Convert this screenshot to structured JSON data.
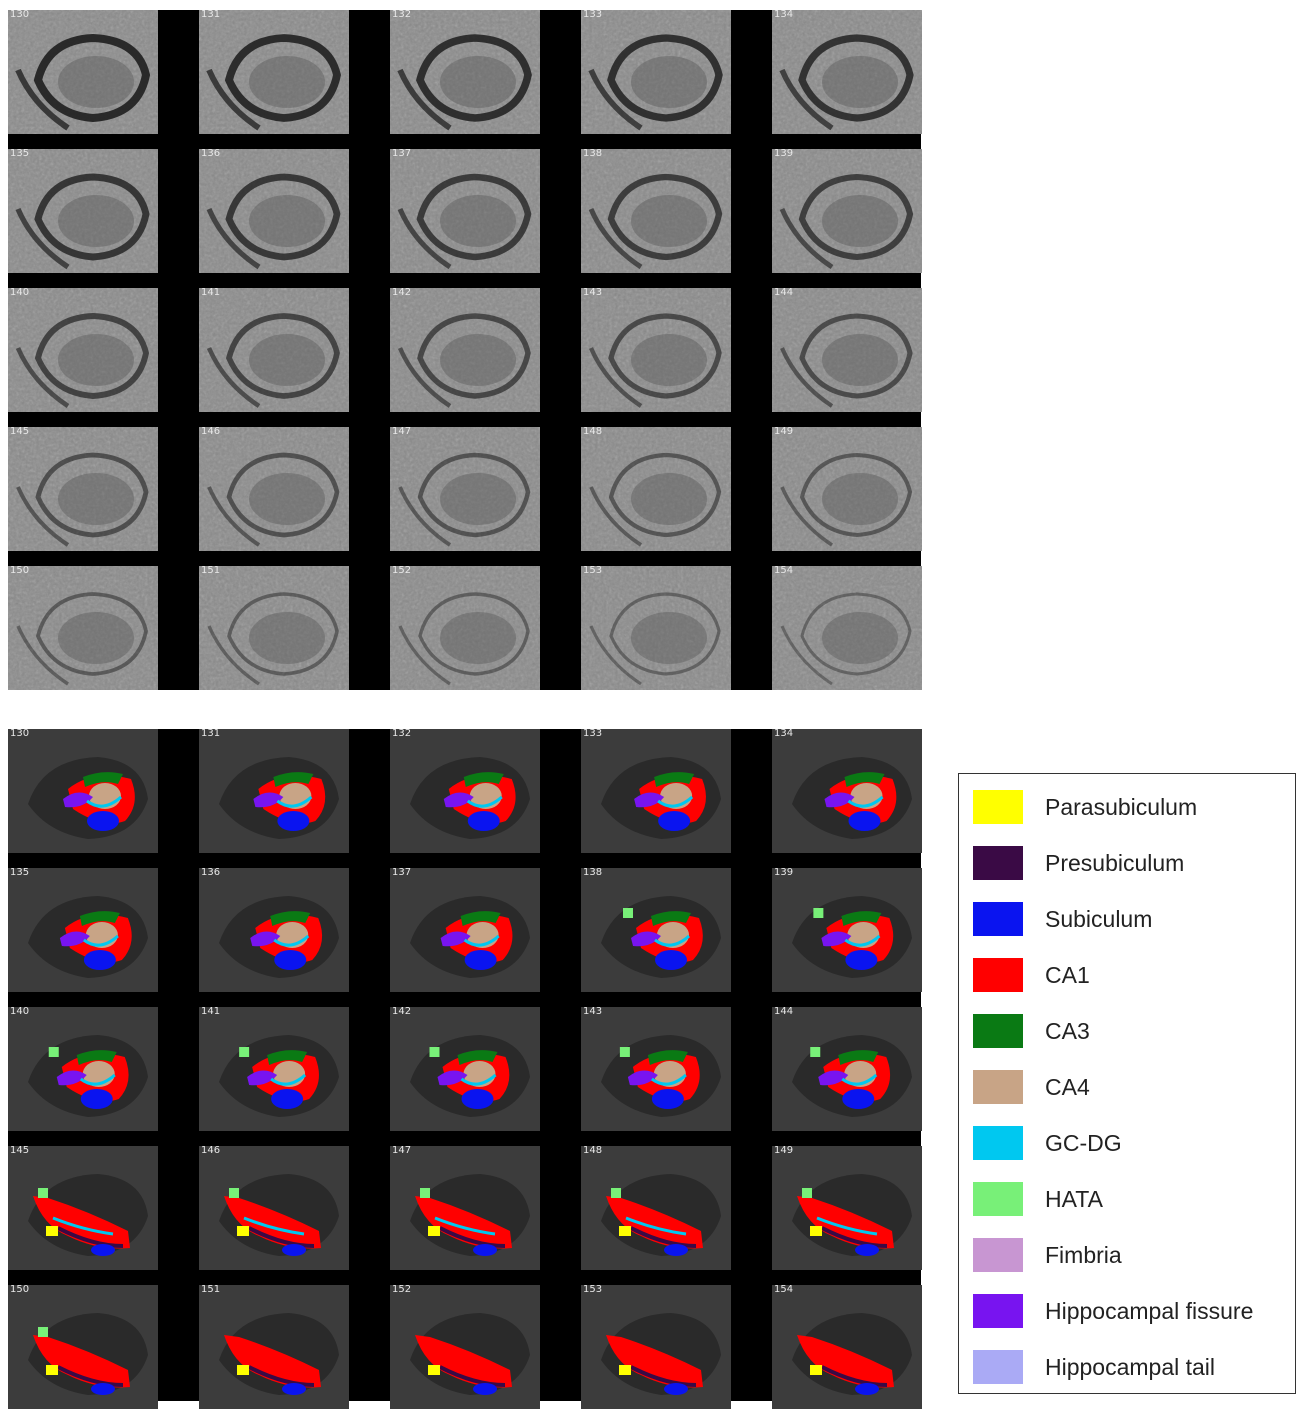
{
  "top_grid": {
    "slice_numbers": [
      "130",
      "131",
      "132",
      "133",
      "134",
      "135",
      "136",
      "137",
      "138",
      "139",
      "140",
      "141",
      "142",
      "143",
      "144",
      "145",
      "146",
      "147",
      "148",
      "149",
      "150",
      "151",
      "152",
      "153",
      "154"
    ]
  },
  "bottom_grid": {
    "slice_numbers": [
      "130",
      "131",
      "132",
      "133",
      "134",
      "135",
      "136",
      "137",
      "138",
      "139",
      "140",
      "141",
      "142",
      "143",
      "144",
      "145",
      "146",
      "147",
      "148",
      "149",
      "150",
      "151",
      "152",
      "153",
      "154"
    ]
  },
  "legend": {
    "items": [
      {
        "label": "Parasubiculum",
        "color": "#ffff00"
      },
      {
        "label": "Presubiculum",
        "color": "#3a0a45"
      },
      {
        "label": "Subiculum",
        "color": "#0a14f0"
      },
      {
        "label": "CA1",
        "color": "#ff0000"
      },
      {
        "label": "CA3",
        "color": "#0a7a14"
      },
      {
        "label": "CA4",
        "color": "#c8a486"
      },
      {
        "label": "GC-DG",
        "color": "#00c8f0"
      },
      {
        "label": "HATA",
        "color": "#78f078"
      },
      {
        "label": "Fimbria",
        "color": "#c896d2"
      },
      {
        "label": "Hippocampal fissure",
        "color": "#7814f0"
      },
      {
        "label": "Hippocampal tail",
        "color": "#aaaaf5"
      }
    ]
  }
}
